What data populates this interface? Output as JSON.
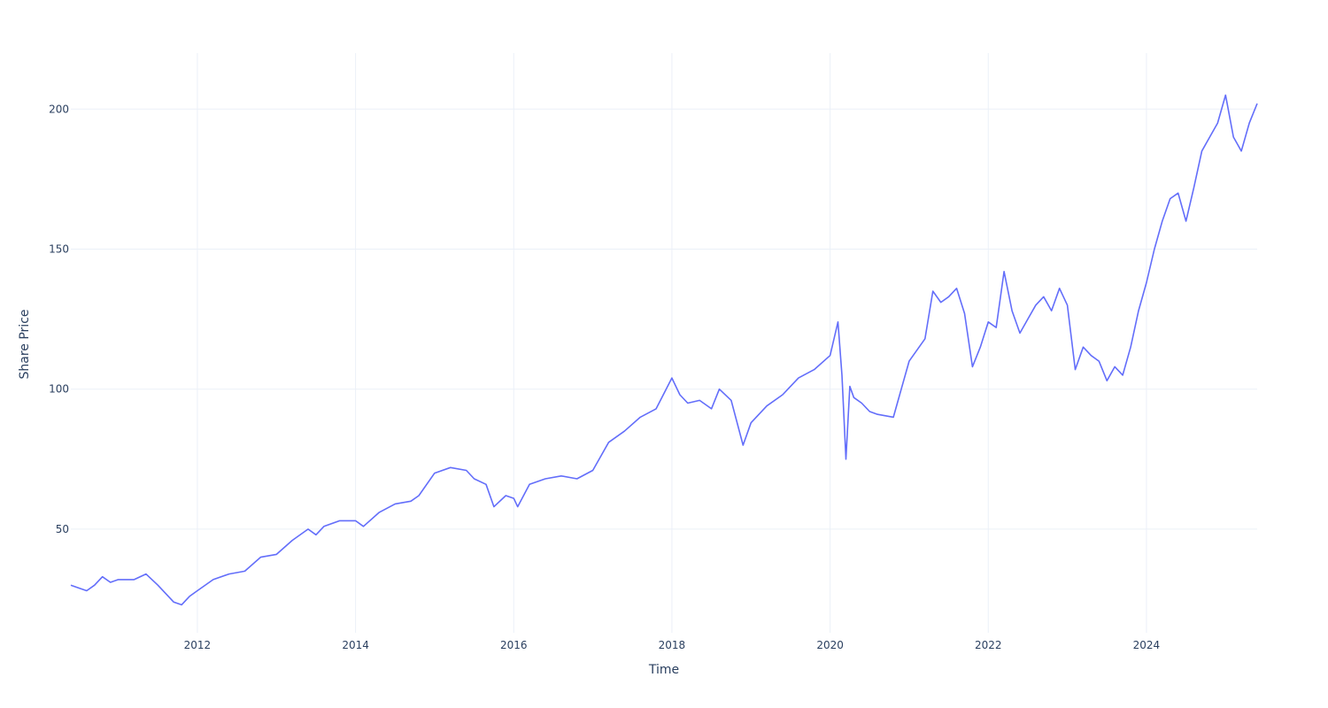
{
  "chart_data": {
    "type": "line",
    "title": "",
    "xlabel": "Time",
    "ylabel": "Share Price",
    "x_ticks": [
      "2012",
      "2014",
      "2016",
      "2018",
      "2020",
      "2022",
      "2024"
    ],
    "y_ticks": [
      50,
      100,
      150,
      200
    ],
    "xlim": [
      2010.4,
      2025.4
    ],
    "ylim": [
      13,
      220
    ],
    "grid": true,
    "legend": "none",
    "colors": {
      "series": "#636efa",
      "grid": "#ebf0f8",
      "text": "#2a3f5f"
    },
    "series": [
      {
        "x": [
          2010.4,
          2010.5,
          2010.6,
          2010.7,
          2010.8,
          2010.9,
          2011.0,
          2011.2,
          2011.35,
          2011.5,
          2011.6,
          2011.7,
          2011.8,
          2011.9,
          2012.0,
          2012.2,
          2012.4,
          2012.6,
          2012.8,
          2013.0,
          2013.2,
          2013.4,
          2013.5,
          2013.6,
          2013.8,
          2014.0,
          2014.1,
          2014.3,
          2014.5,
          2014.7,
          2014.8,
          2015.0,
          2015.2,
          2015.4,
          2015.5,
          2015.65,
          2015.75,
          2015.9,
          2016.0,
          2016.05,
          2016.2,
          2016.4,
          2016.6,
          2016.8,
          2017.0,
          2017.2,
          2017.4,
          2017.6,
          2017.8,
          2018.0,
          2018.1,
          2018.2,
          2018.35,
          2018.5,
          2018.6,
          2018.75,
          2018.9,
          2019.0,
          2019.2,
          2019.4,
          2019.6,
          2019.8,
          2020.0,
          2020.1,
          2020.15,
          2020.2,
          2020.25,
          2020.3,
          2020.4,
          2020.5,
          2020.6,
          2020.8,
          2020.9,
          2021.0,
          2021.2,
          2021.3,
          2021.4,
          2021.5,
          2021.6,
          2021.7,
          2021.8,
          2021.9,
          2022.0,
          2022.1,
          2022.2,
          2022.3,
          2022.4,
          2022.5,
          2022.6,
          2022.7,
          2022.8,
          2022.9,
          2023.0,
          2023.1,
          2023.2,
          2023.3,
          2023.4,
          2023.5,
          2023.6,
          2023.7,
          2023.8,
          2023.9,
          2024.0,
          2024.1,
          2024.2,
          2024.3,
          2024.4,
          2024.5,
          2024.6,
          2024.7,
          2024.8,
          2024.9,
          2025.0,
          2025.1,
          2025.2,
          2025.3,
          2025.4
        ],
        "y": [
          30,
          29,
          28,
          30,
          33,
          31,
          32,
          32,
          34,
          30,
          27,
          24,
          23,
          26,
          28,
          32,
          34,
          35,
          40,
          41,
          46,
          50,
          48,
          51,
          53,
          53,
          51,
          56,
          59,
          60,
          62,
          70,
          72,
          71,
          68,
          66,
          58,
          62,
          61,
          58,
          66,
          68,
          69,
          68,
          71,
          81,
          85,
          90,
          93,
          104,
          98,
          95,
          96,
          93,
          100,
          96,
          80,
          88,
          94,
          98,
          104,
          107,
          112,
          124,
          105,
          75,
          101,
          97,
          95,
          92,
          91,
          90,
          100,
          110,
          118,
          135,
          131,
          133,
          136,
          127,
          108,
          115,
          124,
          122,
          142,
          128,
          120,
          125,
          130,
          133,
          128,
          136,
          130,
          107,
          115,
          112,
          110,
          103,
          108,
          105,
          115,
          128,
          138,
          150,
          160,
          168,
          170,
          160,
          172,
          185,
          190,
          195,
          205,
          190,
          185,
          195,
          202
        ]
      }
    ]
  }
}
